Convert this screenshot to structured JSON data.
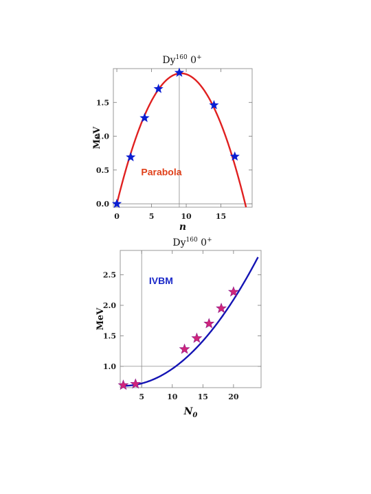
{
  "chart_data": [
    {
      "type": "line",
      "title": "Dy",
      "title_sup": "160",
      "title_tail": " 0",
      "title_tail_sup": "+",
      "xlabel": "n",
      "ylabel": "MeV",
      "annotation": "Parabola",
      "xlim": [
        -0.5,
        19.5
      ],
      "ylim": [
        -0.05,
        2.0
      ],
      "xticks": [
        0,
        5,
        10,
        15
      ],
      "xtick_labels": [
        "0",
        "5",
        "10",
        "15"
      ],
      "yticks": [
        0.0,
        0.5,
        1.0,
        1.5
      ],
      "ytick_labels": [
        "0.0",
        "0.5",
        "1.0",
        "1.5"
      ],
      "grid": false,
      "reference_lines": {
        "x": 9,
        "y": 0.0
      },
      "colors": {
        "curve": "#e02020",
        "points": "#0a1ed2",
        "annotation": "#e0401a"
      },
      "curve": {
        "model": "parabola",
        "vertex_x": 9.25,
        "vertex_y": 1.93,
        "curvature": 0.02255
      },
      "points": {
        "x": [
          0,
          2,
          4,
          6,
          9,
          14,
          17
        ],
        "y": [
          0.0,
          0.69,
          1.27,
          1.7,
          1.94,
          1.46,
          0.7
        ]
      }
    },
    {
      "type": "line",
      "title": "Dy",
      "title_sup": "160",
      "title_tail": " 0",
      "title_tail_sup": "+",
      "xlabel": "N",
      "xlabel_sub": "0",
      "ylabel": "MeV",
      "annotation": "IVBM",
      "xlim": [
        1.5,
        24.5
      ],
      "ylim": [
        0.65,
        2.9
      ],
      "xticks": [
        5,
        10,
        15,
        20
      ],
      "xtick_labels": [
        "5",
        "10",
        "15",
        "20"
      ],
      "yticks": [
        1.0,
        1.5,
        2.0,
        2.5
      ],
      "ytick_labels": [
        "1.0",
        "1.5",
        "2.0",
        "2.5"
      ],
      "grid": false,
      "reference_lines": {
        "x": 5,
        "y": 1.0
      },
      "colors": {
        "curve": "#1414b4",
        "points": "#d0257a",
        "annotation": "#1a28c8"
      },
      "curve": {
        "model": "quadratic",
        "min_x": 2.0,
        "min_y": 0.68,
        "curvature": 0.00436
      },
      "points": {
        "x": [
          2,
          4,
          12,
          14,
          16,
          18,
          20
        ],
        "y": [
          0.69,
          0.71,
          1.28,
          1.46,
          1.7,
          1.95,
          2.22
        ]
      }
    }
  ]
}
